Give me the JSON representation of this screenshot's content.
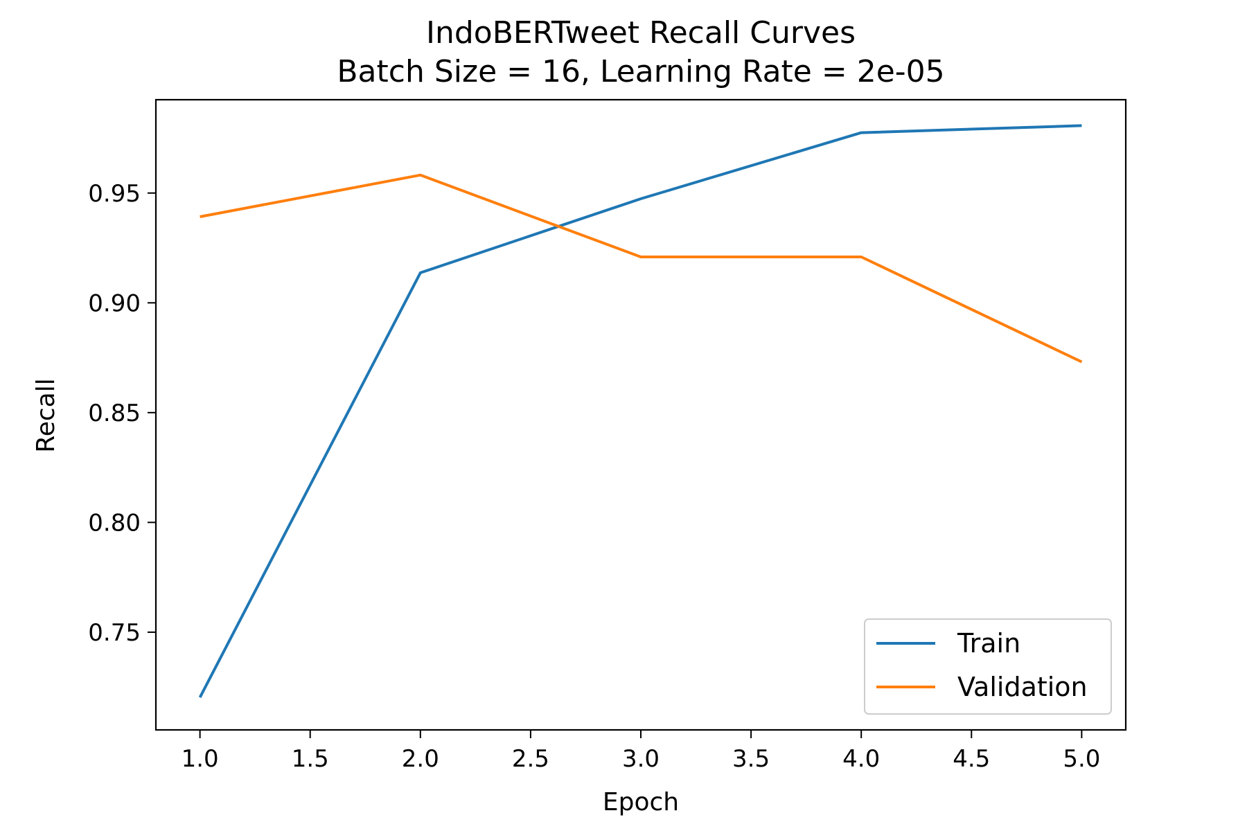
{
  "chart_data": {
    "type": "line",
    "title": "IndoBERTweet Recall Curves",
    "subtitle": "Batch Size = 16, Learning Rate = 2e-05",
    "xlabel": "Epoch",
    "ylabel": "Recall",
    "x": [
      1.0,
      2.0,
      3.0,
      4.0,
      5.0
    ],
    "xlim": [
      0.8,
      5.2
    ],
    "ylim": [
      0.7055,
      0.9925
    ],
    "xticks": [
      1.0,
      1.5,
      2.0,
      2.5,
      3.0,
      3.5,
      4.0,
      4.5,
      5.0
    ],
    "xtick_labels": [
      "1.0",
      "1.5",
      "2.0",
      "2.5",
      "3.0",
      "3.5",
      "4.0",
      "4.5",
      "5.0"
    ],
    "yticks": [
      0.75,
      0.8,
      0.85,
      0.9,
      0.95
    ],
    "ytick_labels": [
      "0.75",
      "0.80",
      "0.85",
      "0.90",
      "0.95"
    ],
    "grid": false,
    "legend_position": "lower-right",
    "series": [
      {
        "name": "Train",
        "color": "#1f77b4",
        "values": [
          0.7203,
          0.9137,
          0.9474,
          0.9775,
          0.9807
        ]
      },
      {
        "name": "Validation",
        "color": "#ff7f0e",
        "values": [
          0.9392,
          0.9582,
          0.9209,
          0.9209,
          0.8731
        ]
      }
    ]
  }
}
